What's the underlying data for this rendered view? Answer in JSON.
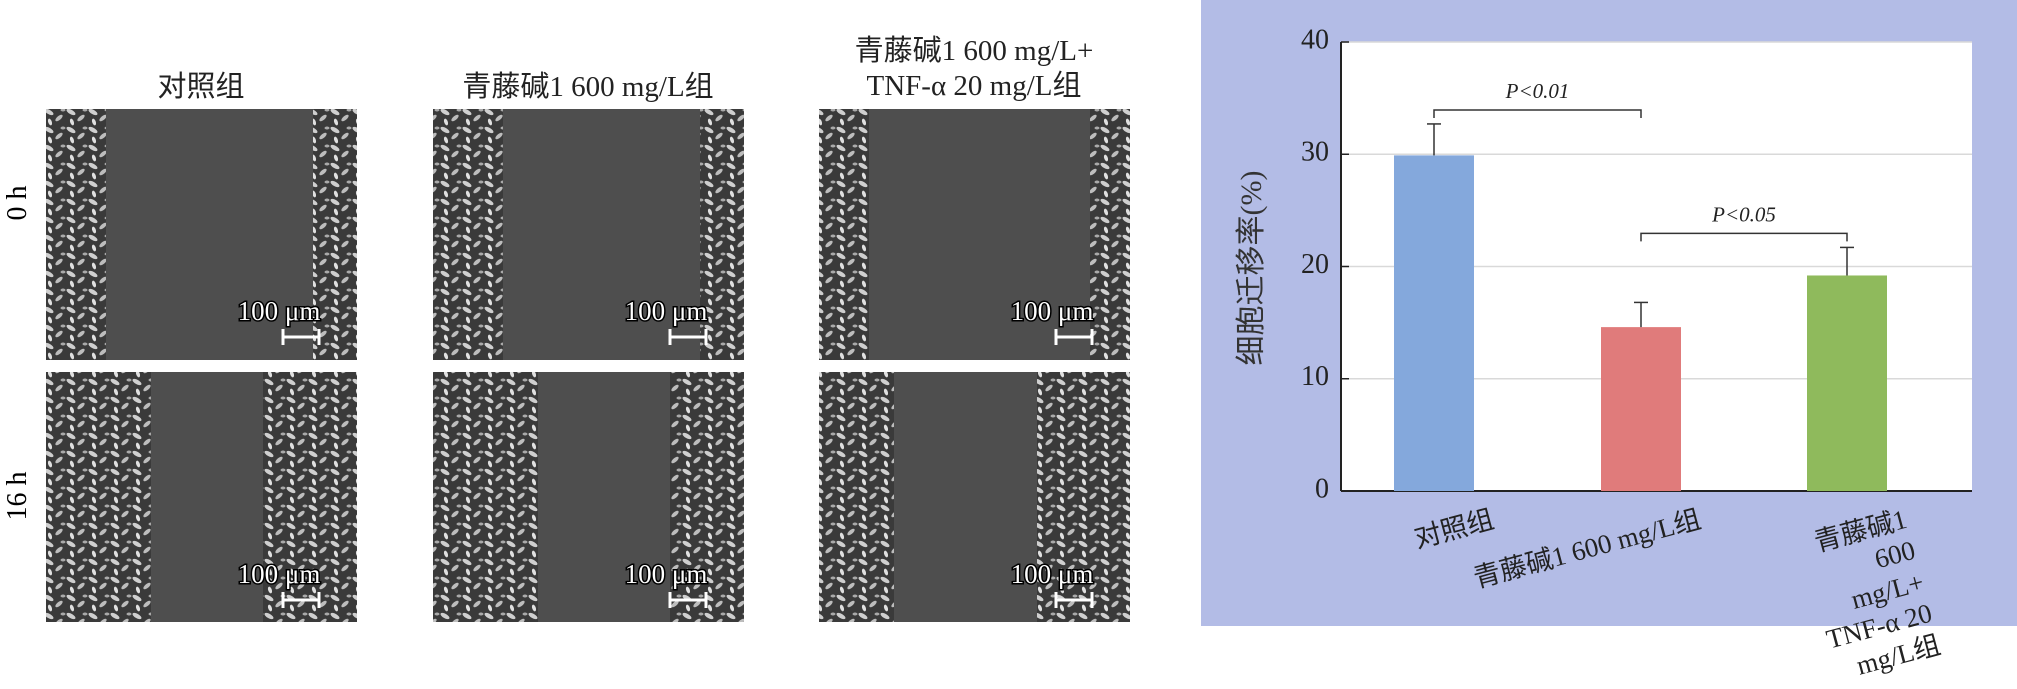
{
  "panels": {
    "columns": [
      "对照组",
      "青藤碱1 600 mg/L组",
      "青藤碱1 600 mg/L+\nTNF-α 20 mg/L组"
    ],
    "rows": [
      "0 h",
      "16 h"
    ],
    "scale_bar": "100 μm"
  },
  "chart_data": {
    "type": "bar",
    "ylabel": "细胞迁移率(%)",
    "categories": [
      "对照组",
      "青藤碱1 600 mg/L组",
      "青藤碱1 600 mg/L+\nTNF-α 20 mg/L组"
    ],
    "values": [
      29.9,
      14.6,
      19.2
    ],
    "errors": [
      2.8,
      2.2,
      2.5
    ],
    "colors": [
      "#84a8dc",
      "#e07b7b",
      "#8fba5c"
    ],
    "ylim": [
      0,
      40
    ],
    "yticks": [
      0,
      10,
      20,
      30,
      40
    ],
    "grid": true,
    "annotations": [
      "P<0.01",
      "P<0.05"
    ]
  }
}
